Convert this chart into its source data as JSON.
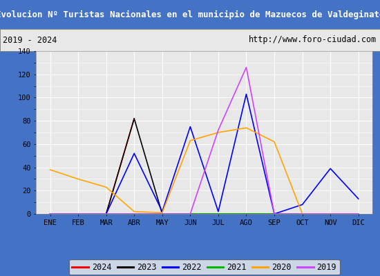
{
  "title": "Evolucion Nº Turistas Nacionales en el municipio de Mazuecos de Valdeginate",
  "subtitle_left": "2019 - 2024",
  "subtitle_right": "http://www.foro-ciudad.com",
  "title_bg_color": "#4472c4",
  "title_text_color": "#ffffff",
  "subtitle_bg_color": "#e8e8e8",
  "plot_bg_color": "#e8e8e8",
  "outer_bg_color": "#4472c4",
  "months": [
    "ENE",
    "FEB",
    "MAR",
    "ABR",
    "MAY",
    "JUN",
    "JUL",
    "AGO",
    "SEP",
    "OCT",
    "NOV",
    "DIC"
  ],
  "ylim": [
    0,
    140
  ],
  "yticks": [
    0,
    20,
    40,
    60,
    80,
    100,
    120,
    140
  ],
  "series": {
    "2024": {
      "color": "#ff0000",
      "values": [
        0,
        0,
        0,
        82,
        null,
        null,
        null,
        null,
        null,
        null,
        null,
        null
      ]
    },
    "2023": {
      "color": "#000000",
      "values": [
        0,
        0,
        0,
        82,
        0,
        0,
        0,
        0,
        0,
        0,
        0,
        0
      ]
    },
    "2022": {
      "color": "#0000ff",
      "values": [
        0,
        0,
        0,
        52,
        2,
        75,
        2,
        103,
        0,
        8,
        39,
        13
      ]
    },
    "2021": {
      "color": "#00bb00",
      "values": [
        0,
        0,
        0,
        0,
        0,
        0,
        0,
        0,
        0,
        0,
        0,
        0
      ]
    },
    "2020": {
      "color": "#ffa500",
      "values": [
        38,
        30,
        23,
        2,
        1,
        63,
        70,
        74,
        62,
        0,
        0,
        0
      ]
    },
    "2019": {
      "color": "#cc44ff",
      "values": [
        0,
        0,
        0,
        0,
        0,
        0,
        72,
        126,
        0,
        0,
        0,
        0
      ]
    }
  },
  "legend_order": [
    "2024",
    "2023",
    "2022",
    "2021",
    "2020",
    "2019"
  ]
}
